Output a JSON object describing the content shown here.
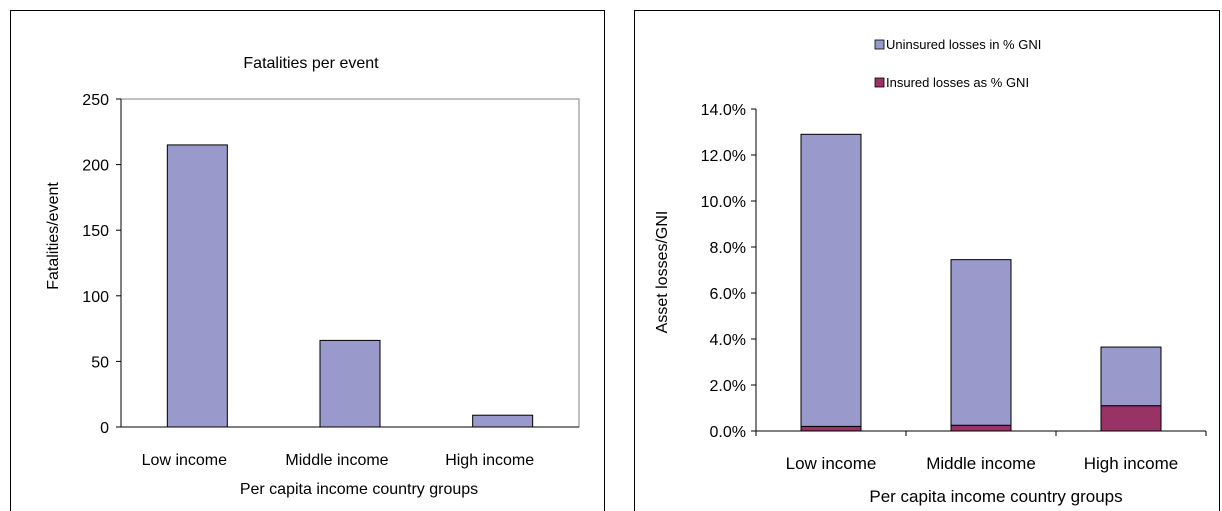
{
  "chart_data": [
    {
      "type": "bar",
      "title": "Fatalities per event",
      "xlabel": "Per capita income country groups",
      "ylabel": "Fatalities/event",
      "categories": [
        "Low income",
        "Middle income",
        "High income"
      ],
      "values": [
        215,
        66,
        9
      ],
      "ylim": [
        0,
        250
      ],
      "yticks": [
        "0",
        "50",
        "100",
        "150",
        "200",
        "250"
      ],
      "grid": false,
      "legend": "none",
      "colors": {
        "bar": "#9999cc",
        "plot_border": "#808080"
      }
    },
    {
      "type": "bar",
      "stacked": true,
      "title": "",
      "xlabel": "Per capita income country groups",
      "ylabel": "Asset losses/GNI",
      "categories": [
        "Low income",
        "Middle income",
        "High income"
      ],
      "series": [
        {
          "name": "Insured  losses as % GNI",
          "values": [
            0.2,
            0.25,
            1.1
          ],
          "color": "#993366"
        },
        {
          "name": "Uninsured losses in % GNI",
          "values": [
            12.7,
            7.2,
            2.55
          ],
          "color": "#9999cc"
        }
      ],
      "ylim": [
        0,
        14
      ],
      "yticks": [
        "0.0%",
        "2.0%",
        "4.0%",
        "6.0%",
        "8.0%",
        "10.0%",
        "12.0%",
        "14.0%"
      ],
      "grid": false,
      "legend": "top",
      "legend_order": [
        "Uninsured losses in % GNI",
        "Insured  losses as % GNI"
      ]
    }
  ]
}
